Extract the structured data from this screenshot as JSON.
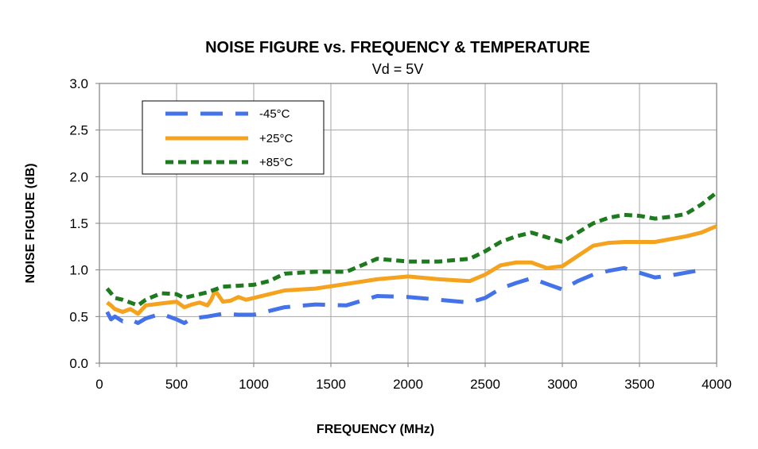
{
  "chart_data": {
    "type": "line",
    "title": "NOISE FIGURE vs. FREQUENCY & TEMPERATURE",
    "subtitle": "Vd = 5V",
    "xlabel": "FREQUENCY (MHz)",
    "ylabel": "NOISE FIGURE (dB)",
    "xlim": [
      0,
      4000
    ],
    "ylim": [
      0,
      3.0
    ],
    "xticks": [
      0,
      500,
      1000,
      1500,
      2000,
      2500,
      3000,
      3500,
      4000
    ],
    "xtick_labels": [
      "0",
      "500",
      "1000",
      "1500",
      "2000",
      "2500",
      "3000",
      "3500",
      "4000"
    ],
    "yticks": [
      0,
      0.5,
      1.0,
      1.5,
      2.0,
      2.5,
      3.0
    ],
    "ytick_labels": [
      "0.0",
      "0.5",
      "1.0",
      "1.5",
      "2.0",
      "2.5",
      "3.0"
    ],
    "grid": true,
    "legend_position": "top-left",
    "series": [
      {
        "name": "-45°C",
        "color": "#4472e8",
        "style": "long-dash",
        "x": [
          50,
          75,
          100,
          150,
          200,
          250,
          300,
          400,
          500,
          550,
          600,
          700,
          800,
          900,
          1000,
          1100,
          1200,
          1400,
          1600,
          1800,
          2000,
          2200,
          2400,
          2500,
          2600,
          2700,
          2800,
          2900,
          3000,
          3100,
          3200,
          3300,
          3400,
          3500,
          3600,
          3700,
          3800,
          3900
        ],
        "y": [
          0.55,
          0.47,
          0.5,
          0.45,
          0.47,
          0.43,
          0.48,
          0.53,
          0.47,
          0.43,
          0.48,
          0.5,
          0.53,
          0.52,
          0.52,
          0.56,
          0.6,
          0.63,
          0.62,
          0.72,
          0.71,
          0.68,
          0.65,
          0.7,
          0.8,
          0.86,
          0.91,
          0.85,
          0.79,
          0.88,
          0.95,
          0.99,
          1.02,
          0.97,
          0.92,
          0.94,
          0.97,
          1.0
        ]
      },
      {
        "name": "+25°C",
        "color": "#f5a31f",
        "style": "solid",
        "x": [
          50,
          75,
          100,
          150,
          200,
          250,
          300,
          400,
          500,
          550,
          600,
          650,
          700,
          725,
          750,
          800,
          850,
          900,
          950,
          1000,
          1200,
          1400,
          1600,
          1800,
          2000,
          2200,
          2400,
          2500,
          2600,
          2700,
          2800,
          2900,
          3000,
          3100,
          3200,
          3300,
          3400,
          3500,
          3600,
          3700,
          3800,
          3900,
          4000
        ],
        "y": [
          0.65,
          0.62,
          0.58,
          0.55,
          0.58,
          0.53,
          0.62,
          0.64,
          0.66,
          0.6,
          0.63,
          0.65,
          0.62,
          0.68,
          0.78,
          0.66,
          0.67,
          0.71,
          0.68,
          0.7,
          0.78,
          0.8,
          0.85,
          0.9,
          0.93,
          0.9,
          0.88,
          0.95,
          1.05,
          1.08,
          1.08,
          1.02,
          1.04,
          1.15,
          1.26,
          1.29,
          1.3,
          1.3,
          1.3,
          1.33,
          1.36,
          1.4,
          1.47
        ]
      },
      {
        "name": "+85°C",
        "color": "#1e7a1e",
        "style": "short-dash",
        "x": [
          50,
          75,
          100,
          150,
          200,
          250,
          300,
          400,
          500,
          550,
          600,
          700,
          800,
          900,
          1000,
          1100,
          1200,
          1400,
          1600,
          1800,
          2000,
          2200,
          2400,
          2500,
          2600,
          2700,
          2800,
          2900,
          3000,
          3100,
          3200,
          3300,
          3400,
          3500,
          3600,
          3700,
          3800,
          3900,
          4000
        ],
        "y": [
          0.8,
          0.75,
          0.7,
          0.68,
          0.65,
          0.62,
          0.68,
          0.75,
          0.74,
          0.7,
          0.72,
          0.76,
          0.82,
          0.83,
          0.84,
          0.88,
          0.96,
          0.98,
          0.98,
          1.12,
          1.09,
          1.09,
          1.12,
          1.2,
          1.3,
          1.36,
          1.4,
          1.35,
          1.3,
          1.4,
          1.5,
          1.56,
          1.59,
          1.58,
          1.55,
          1.57,
          1.6,
          1.7,
          1.83
        ]
      }
    ]
  }
}
